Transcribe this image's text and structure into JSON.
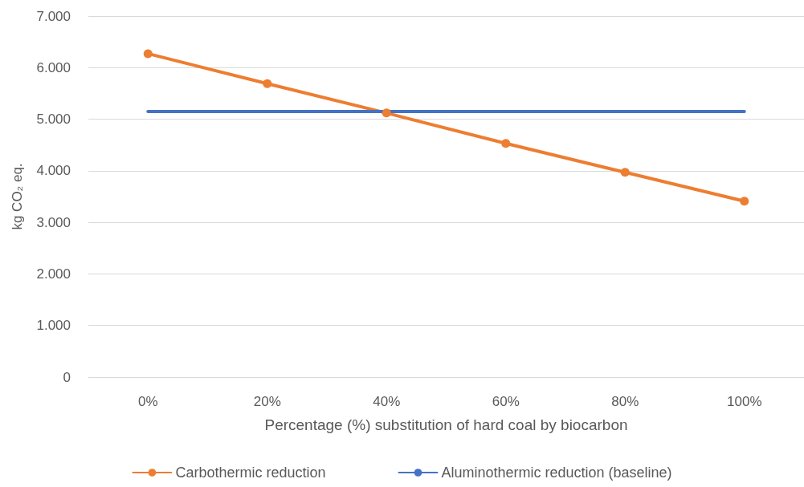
{
  "chart_data": {
    "type": "line",
    "xlabel": "Percentage (%) substitution of hard coal by biocarbon",
    "ylabel": "kg CO₂ eq.",
    "categories": [
      "0%",
      "20%",
      "40%",
      "60%",
      "80%",
      "100%"
    ],
    "series": [
      {
        "name": "Carbothermic reduction",
        "color": "#ed7d31",
        "marker": "circle",
        "values": [
          6270,
          5690,
          5120,
          4530,
          3970,
          3410
        ]
      },
      {
        "name": "Aluminothermic reduction (baseline)",
        "color": "#4472c4",
        "marker": "none",
        "values": [
          5150,
          5150,
          5150,
          5150,
          5150,
          5150
        ]
      }
    ],
    "ylim": [
      0,
      7000
    ],
    "yticks": [
      0,
      {
        "value": 1000,
        "label": "1.000"
      },
      {
        "value": 2000,
        "label": "2.000"
      },
      {
        "value": 3000,
        "label": "3.000"
      },
      {
        "value": 4000,
        "label": "4.000"
      },
      {
        "value": 5000,
        "label": "5.000"
      },
      {
        "value": 6000,
        "label": "6.000"
      },
      {
        "value": 7000,
        "label": "7.000"
      }
    ],
    "grid": "y",
    "legend": "bottom",
    "line_style": "solid"
  }
}
